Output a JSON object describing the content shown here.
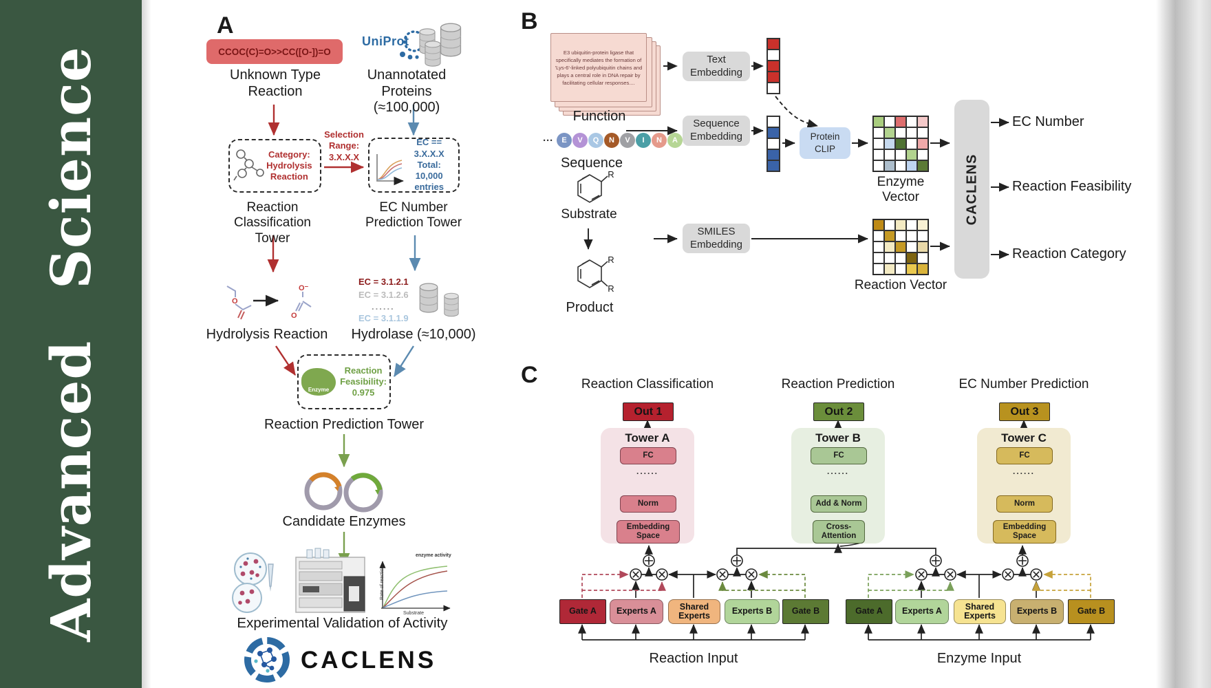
{
  "sidebar": {
    "journal": "Advanced Science"
  },
  "colors": {
    "sidebar_green": "#3A5741",
    "pill_red": "#DF6A6A",
    "arrow_red": "#B03030",
    "arrow_blue": "#5B8AB0",
    "arrow_green": "#7AA04E",
    "gray_box": "#D9D9D9",
    "clip_blue": "#C9DBF2",
    "out1_red": "#B5212E",
    "out2_green": "#6B8E3B",
    "out3_gold": "#B8921F"
  },
  "panelA": {
    "label": "A",
    "smiles": "CCOC(C)=O>>CC([O-])=O",
    "unknown_type": "Unknown Type Reaction",
    "uniprot": "UniProt",
    "unannotated": "Unannotated Proteins (≈100,000)",
    "category_box": "Category: Hydrolysis Reaction",
    "selection": "Selection Range: 3.X.X.X",
    "ec_box": "EC == 3.X.X.X Total: 10,000 entries",
    "reaction_classification_tower": "Reaction Classification Tower",
    "ec_number_prediction_tower": "EC Number Prediction Tower",
    "ec_list": [
      "EC = 3.1.2.1",
      "EC = 3.1.2.6",
      "......",
      "EC = 3.1.1.9"
    ],
    "hydrolysis_reaction": "Hydrolysis Reaction",
    "hydrolase": "Hydrolase (≈10,000)",
    "enzyme": "Enzyme",
    "feasibility": "Reaction Feasibility: 0.975",
    "reaction_prediction_tower": "Reaction Prediction Tower",
    "candidate_enzymes": "Candidate Enzymes",
    "validation": "Experimental Validation of Activity",
    "logo": "CACLENS",
    "chart": {
      "annotation": "enzyme activity",
      "ylabel": "Rate of reaction",
      "xlabel": "Substrate"
    }
  },
  "panelB": {
    "label": "B",
    "function_text": "E3 ubiquitin-protein ligase that specifically mediates the formation of 'Lys-6'-linked polyubiquitin chains and plays a central role in DNA repair by facilitating cellular responses....",
    "function": "Function",
    "sequence": "Sequence",
    "ellipsis": "···",
    "residues": [
      {
        "ch": "E",
        "color": "#7B95C4"
      },
      {
        "ch": "V",
        "color": "#B493D6"
      },
      {
        "ch": "Q",
        "color": "#A9C7E4"
      },
      {
        "ch": "N",
        "color": "#A55A28"
      },
      {
        "ch": "V",
        "color": "#9FA0A4"
      },
      {
        "ch": "I",
        "color": "#4B9FA6"
      },
      {
        "ch": "N",
        "color": "#E59A8B"
      },
      {
        "ch": "A",
        "color": "#B6D695"
      }
    ],
    "substrate": "Substrate",
    "product": "Product",
    "r": "R",
    "text_embedding": "Text Embedding",
    "sequence_embedding": "Sequence Embedding",
    "smiles_embedding": "SMILES Embedding",
    "protein_clip": "Protein CLIP",
    "enzyme_vector": "Enzyme Vector",
    "reaction_vector": "Reaction Vector",
    "caclens": "CACLENS",
    "outputs": [
      "EC Number",
      "Reaction Feasibility",
      "Reaction Category"
    ],
    "text_vector_cells": [
      "#C9312B",
      "#FFFFFF",
      "#C9312B",
      "#C9312B",
      "#FFFFFF"
    ],
    "sequence_vector_cells": [
      "#FFFFFF",
      "#3A63A8",
      "#FFFFFF",
      "#3A63A8",
      "#3A63A8"
    ],
    "enzyme_grid_cells": [
      "#A9CD7E",
      "#FFFFFF",
      "#DD6E6E",
      "#FFFFFF",
      "#F4C9C9",
      "#FFFFFF",
      "#B2D38F",
      "#FFFFFF",
      "#FFFFFF",
      "#FFFFFF",
      "#FFFFFF",
      "#C6D9EE",
      "#4F7233",
      "#FFFFFF",
      "#EFA9A9",
      "#FFFFFF",
      "#FFFFFF",
      "#FFFFFF",
      "#B2D38F",
      "#FFFFFF",
      "#FFFFFF",
      "#ADBECC",
      "#FFFFFF",
      "#BFD5F0",
      "#5C7A36"
    ],
    "reaction_grid_cells": [
      "#BE8A16",
      "#FFFFFF",
      "#F3EAC3",
      "#FFFFFF",
      "#F8F1D4",
      "#FFFFFF",
      "#C59A25",
      "#FFFFFF",
      "#FFFFFF",
      "#FFFFFF",
      "#FFFFFF",
      "#F3EAC3",
      "#C59A25",
      "#FFFFFF",
      "#E9D9A8",
      "#FFFFFF",
      "#FFFFFF",
      "#FFFFFF",
      "#7E6410",
      "#FFFFFF",
      "#FFFFFF",
      "#F3EAC3",
      "#FFFFFF",
      "#EAC94F",
      "#D9B33A"
    ]
  },
  "panelC": {
    "label": "C",
    "headings": [
      "Reaction Classification",
      "Reaction Prediction",
      "EC Number Prediction"
    ],
    "outs": [
      "Out 1",
      "Out 2",
      "Out 3"
    ],
    "towers": [
      {
        "name": "Tower A",
        "fc": "FC",
        "dots": "......",
        "l1": "Norm",
        "l2": "Embedding Space"
      },
      {
        "name": "Tower B",
        "fc": "FC",
        "dots": "......",
        "l1": "Add & Norm",
        "l2": "Cross-Attention"
      },
      {
        "name": "Tower C",
        "fc": "FC",
        "dots": "......",
        "l1": "Norm",
        "l2": "Embedding Space"
      }
    ],
    "moe": [
      {
        "gate_a": "Gate A",
        "experts_a": "Experts A",
        "shared": "Shared Experts",
        "experts_b": "Experts B",
        "gate_b": "Gate B",
        "input": "Reaction Input"
      },
      {
        "gate_a": "Gate A",
        "experts_a": "Experts A",
        "shared": "Shared Experts",
        "experts_b": "Experts B",
        "gate_b": "Gate B",
        "input": "Enzyme Input"
      }
    ]
  }
}
